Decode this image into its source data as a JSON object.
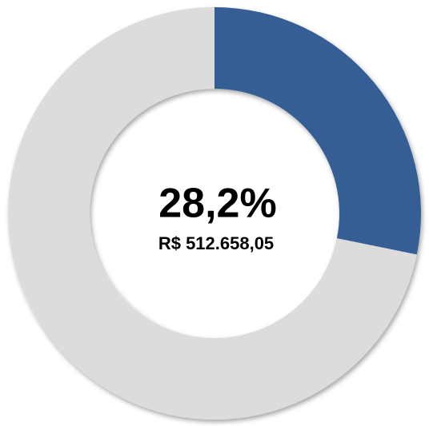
{
  "chart_data": {
    "type": "donut",
    "values": [
      28.2,
      71.8
    ],
    "value_labels": [
      "28,2%",
      null
    ],
    "colors": [
      "#365f94",
      "#dcdcdc"
    ],
    "annotation": "R$ 512.658,05"
  }
}
